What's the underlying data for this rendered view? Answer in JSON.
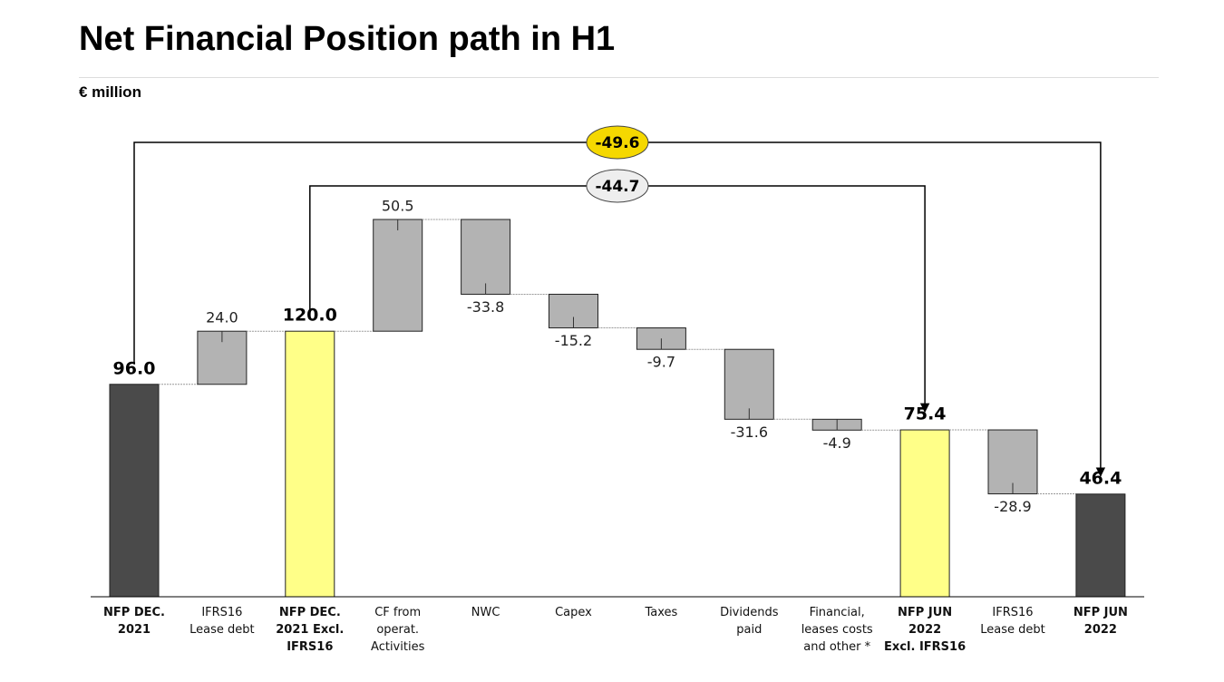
{
  "chart_data": {
    "type": "waterfall",
    "title": "Net Financial Position path in H1",
    "subtitle": "€ million",
    "categories": [
      "NFP DEC.\n2021",
      "IFRS16\nLease debt",
      "NFP DEC.\n2021 Excl.\nIFRS16",
      "CF from\noperat.\nActivities",
      "NWC",
      "Capex",
      "Taxes",
      "Dividends\npaid",
      "Financial,\nleases costs\nand other *",
      "NFP JUN 2022\nExcl. IFRS16",
      "IFRS16\nLease debt",
      "NFP JUN\n2022"
    ],
    "values": [
      96.0,
      24.0,
      120.0,
      50.5,
      -33.8,
      -15.2,
      -9.7,
      -31.6,
      -4.9,
      75.4,
      -28.9,
      46.4
    ],
    "value_labels": [
      "96.0",
      "24.0",
      "120.0",
      "50.5",
      "-33.8",
      "-15.2",
      "-9.7",
      "-31.6",
      "-4.9",
      "75.4",
      "-28.9",
      "46.4"
    ],
    "kinds": [
      "total",
      "delta",
      "total",
      "delta",
      "delta",
      "delta",
      "delta",
      "delta",
      "delta",
      "total",
      "delta",
      "total"
    ],
    "colors": [
      "#4a4a4a",
      "#b3b3b3",
      "#ffff88",
      "#b3b3b3",
      "#b3b3b3",
      "#b3b3b3",
      "#b3b3b3",
      "#b3b3b3",
      "#b3b3b3",
      "#ffff88",
      "#b3b3b3",
      "#4a4a4a"
    ],
    "ylim": [
      0,
      200
    ],
    "annotations": [
      {
        "value": -49.6,
        "from": 0,
        "to": 11,
        "color": "#f5d800"
      },
      {
        "value": -44.7,
        "from": 2,
        "to": 9,
        "color": "#eeeeee"
      }
    ]
  }
}
